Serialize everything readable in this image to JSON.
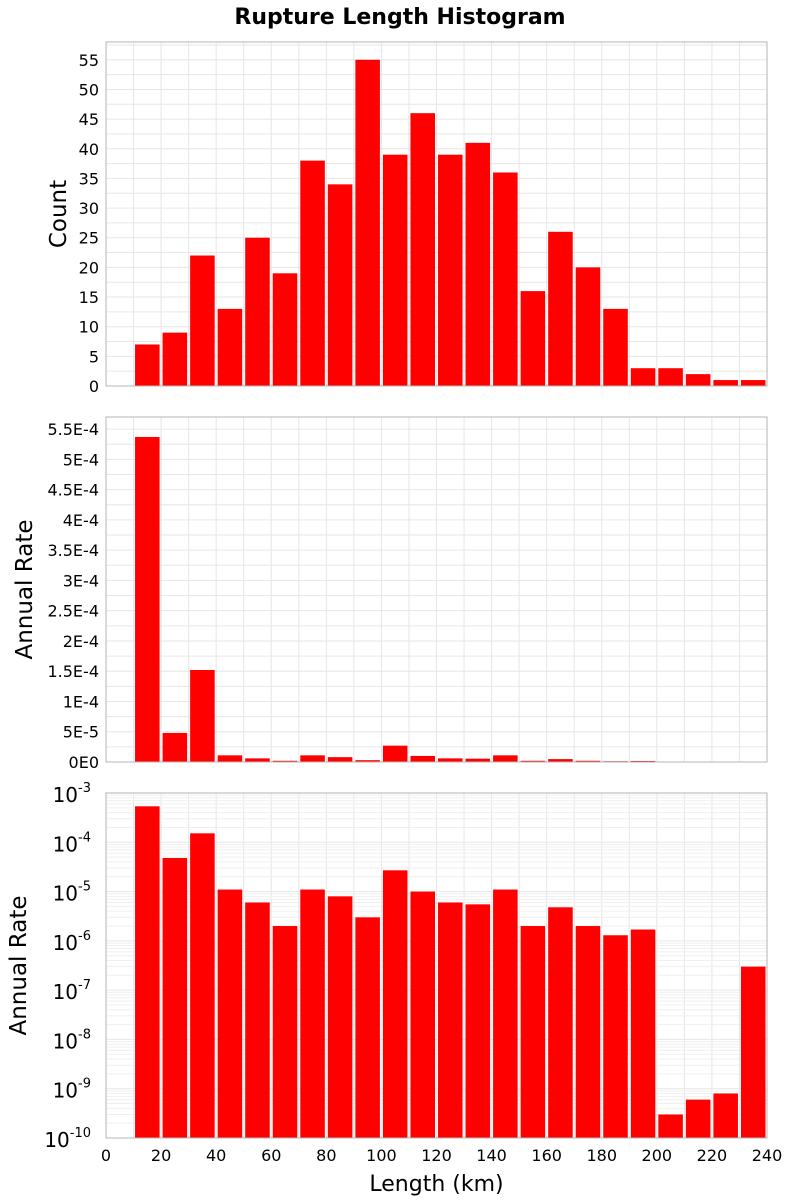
{
  "chart_data": [
    {
      "type": "bar",
      "title": "Rupture Length Histogram",
      "ylabel": "Count",
      "xlabel": "",
      "x_centers": [
        15,
        25,
        35,
        45,
        55,
        65,
        75,
        85,
        95,
        105,
        115,
        125,
        135,
        145,
        155,
        165,
        175,
        185,
        195,
        205,
        215,
        225,
        235
      ],
      "values": [
        7,
        9,
        22,
        13,
        25,
        19,
        38,
        34,
        55,
        39,
        46,
        39,
        41,
        36,
        16,
        26,
        20,
        13,
        3,
        3,
        2,
        1,
        1
      ],
      "xlim": [
        0,
        240
      ],
      "ylim": [
        0,
        58
      ],
      "y_ticks": [
        0,
        5,
        10,
        15,
        20,
        25,
        30,
        35,
        40,
        45,
        50,
        55
      ],
      "y_tick_labels": [
        "0",
        "5",
        "10",
        "15",
        "20",
        "25",
        "30",
        "35",
        "40",
        "45",
        "50",
        "55"
      ],
      "grid": true,
      "color": "#ff0000"
    },
    {
      "type": "bar",
      "ylabel": "Annual Rate",
      "xlabel": "",
      "x_centers": [
        15,
        25,
        35,
        45,
        55,
        65,
        75,
        85,
        95,
        105,
        115,
        125,
        135,
        145,
        155,
        165,
        175,
        185,
        195,
        205,
        215,
        225,
        235
      ],
      "values": [
        0.000537,
        4.8e-05,
        0.000152,
        1.1e-05,
        6e-06,
        2e-06,
        1.1e-05,
        8e-06,
        3e-06,
        2.7e-05,
        1e-05,
        6e-06,
        5.5e-06,
        1.1e-05,
        2e-06,
        4.8e-06,
        2e-06,
        1.3e-06,
        1.7e-06,
        3e-10,
        6e-10,
        8e-10,
        3e-07
      ],
      "xlim": [
        0,
        240
      ],
      "ylim": [
        0,
        0.00057
      ],
      "y_ticks": [
        0,
        5e-05,
        0.0001,
        0.00015,
        0.0002,
        0.00025,
        0.0003,
        0.00035,
        0.0004,
        0.00045,
        0.0005,
        0.00055
      ],
      "y_tick_labels": [
        "0E0",
        "5E-5",
        "1E-4",
        "1.5E-4",
        "2E-4",
        "2.5E-4",
        "3E-4",
        "3.5E-4",
        "4E-4",
        "4.5E-4",
        "5E-4",
        "5.5E-4"
      ],
      "grid": true,
      "color": "#ff0000"
    },
    {
      "type": "bar",
      "ylabel": "Annual Rate",
      "xlabel": "Length (km)",
      "y_scale": "log",
      "x_centers": [
        15,
        25,
        35,
        45,
        55,
        65,
        75,
        85,
        95,
        105,
        115,
        125,
        135,
        145,
        155,
        165,
        175,
        185,
        195,
        205,
        215,
        225,
        235
      ],
      "values": [
        0.000537,
        4.8e-05,
        0.000152,
        1.1e-05,
        6e-06,
        2e-06,
        1.1e-05,
        8e-06,
        3e-06,
        2.7e-05,
        1e-05,
        6e-06,
        5.5e-06,
        1.1e-05,
        2e-06,
        4.8e-06,
        2e-06,
        1.3e-06,
        1.7e-06,
        3e-10,
        6e-10,
        8e-10,
        3e-07
      ],
      "xlim": [
        0,
        240
      ],
      "ylim": [
        1e-10,
        0.001
      ],
      "y_ticks": [
        1e-10,
        1e-09,
        1e-08,
        1e-07,
        1e-06,
        1e-05,
        0.0001,
        0.001
      ],
      "y_tick_exponents": [
        "-10",
        "-9",
        "-8",
        "-7",
        "-6",
        "-5",
        "-4",
        "-3"
      ],
      "y_tick_base": "10",
      "x_ticks": [
        0,
        20,
        40,
        60,
        80,
        100,
        120,
        140,
        160,
        180,
        200,
        220,
        240
      ],
      "x_tick_labels": [
        "0",
        "20",
        "40",
        "60",
        "80",
        "100",
        "120",
        "140",
        "160",
        "180",
        "200",
        "220",
        "240"
      ],
      "grid": true,
      "color": "#ff0000"
    }
  ]
}
